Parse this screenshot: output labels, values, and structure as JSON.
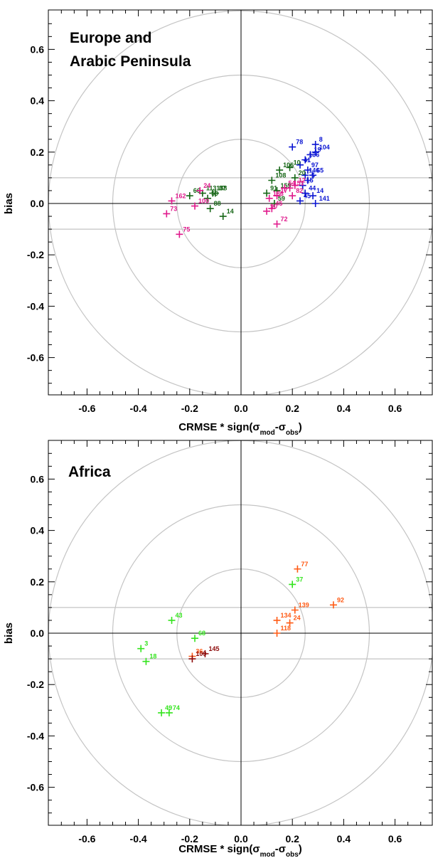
{
  "chart_data": [
    {
      "type": "scatter",
      "title_lines": [
        "Europe and",
        "Arabic Peninsula"
      ],
      "xlabel": "CRMSE * sign(σmod-σobs)",
      "ylabel": "bias",
      "xlim": [
        -0.75,
        0.75
      ],
      "ylim": [
        -0.75,
        0.75
      ],
      "xticks": [
        "-0.6",
        "-0.4",
        "-0.2",
        "0.0",
        "0.2",
        "0.4",
        "0.6"
      ],
      "yticks": [
        "-0.6",
        "-0.4",
        "-0.2",
        "0.0",
        "0.2",
        "0.4",
        "0.6"
      ],
      "circles": [
        0.25,
        0.5,
        0.75
      ],
      "hlines": [
        0.1,
        -0.1
      ],
      "series": [
        {
          "color": "#0a14d2",
          "points": [
            {
              "label": "78",
              "x": 0.2,
              "y": 0.22
            },
            {
              "label": "8",
              "x": 0.29,
              "y": 0.23
            },
            {
              "label": "104",
              "x": 0.29,
              "y": 0.2
            },
            {
              "label": "19",
              "x": 0.27,
              "y": 0.19
            },
            {
              "label": "136",
              "x": 0.25,
              "y": 0.17
            },
            {
              "label": "41",
              "x": 0.23,
              "y": 0.15
            },
            {
              "label": "97",
              "x": 0.26,
              "y": 0.13
            },
            {
              "label": "146",
              "x": 0.25,
              "y": 0.11
            },
            {
              "label": "65",
              "x": 0.28,
              "y": 0.11
            },
            {
              "label": "5",
              "x": 0.26,
              "y": 0.09
            },
            {
              "label": "15",
              "x": 0.24,
              "y": 0.07
            },
            {
              "label": "44",
              "x": 0.25,
              "y": 0.04
            },
            {
              "label": "14",
              "x": 0.28,
              "y": 0.03
            },
            {
              "label": "141",
              "x": 0.29,
              "y": 0.0
            },
            {
              "label": "45",
              "x": 0.23,
              "y": 0.01
            }
          ]
        },
        {
          "color": "#166616",
          "points": [
            {
              "label": "66",
              "x": -0.2,
              "y": 0.03
            },
            {
              "label": "113",
              "x": -0.15,
              "y": 0.04
            },
            {
              "label": "138",
              "x": -0.11,
              "y": 0.04
            },
            {
              "label": "87",
              "x": -0.1,
              "y": 0.04
            },
            {
              "label": "59",
              "x": -0.13,
              "y": 0.02
            },
            {
              "label": "88",
              "x": -0.12,
              "y": -0.02
            },
            {
              "label": "14",
              "x": -0.07,
              "y": -0.05
            },
            {
              "label": "106",
              "x": 0.15,
              "y": 0.13
            },
            {
              "label": "10",
              "x": 0.19,
              "y": 0.14
            },
            {
              "label": "108",
              "x": 0.12,
              "y": 0.09
            },
            {
              "label": "20",
              "x": 0.21,
              "y": 0.1
            },
            {
              "label": "159",
              "x": 0.14,
              "y": 0.05
            },
            {
              "label": "91",
              "x": 0.1,
              "y": 0.04
            },
            {
              "label": "59",
              "x": 0.13,
              "y": 0.0
            }
          ]
        },
        {
          "color": "#e0198c",
          "points": [
            {
              "label": "162",
              "x": -0.27,
              "y": 0.01
            },
            {
              "label": "73",
              "x": -0.29,
              "y": -0.04
            },
            {
              "label": "24",
              "x": -0.16,
              "y": 0.05
            },
            {
              "label": "100",
              "x": -0.18,
              "y": -0.01
            },
            {
              "label": "75",
              "x": -0.24,
              "y": -0.12
            },
            {
              "label": "72",
              "x": 0.14,
              "y": -0.08
            },
            {
              "label": "186",
              "x": 0.11,
              "y": 0.02
            },
            {
              "label": "17",
              "x": 0.14,
              "y": 0.03
            },
            {
              "label": "45",
              "x": 0.12,
              "y": -0.02
            },
            {
              "label": "90",
              "x": 0.1,
              "y": -0.03
            },
            {
              "label": "12",
              "x": 0.21,
              "y": 0.07
            },
            {
              "label": "54",
              "x": 0.17,
              "y": 0.06
            },
            {
              "label": "151",
              "x": 0.19,
              "y": 0.06
            },
            {
              "label": "82",
              "x": 0.2,
              "y": 0.03
            }
          ]
        }
      ]
    },
    {
      "type": "scatter",
      "title_lines": [
        "Africa"
      ],
      "xlabel": "CRMSE * sign(σmod-σobs)",
      "ylabel": "bias",
      "xlim": [
        -0.75,
        0.75
      ],
      "ylim": [
        -0.75,
        0.75
      ],
      "xticks": [
        "-0.6",
        "-0.4",
        "-0.2",
        "0.0",
        "0.2",
        "0.4",
        "0.6"
      ],
      "yticks": [
        "-0.6",
        "-0.4",
        "-0.2",
        "0.0",
        "0.2",
        "0.4",
        "0.6"
      ],
      "circles": [
        0.25,
        0.5,
        0.75
      ],
      "hlines": [
        0.1,
        -0.1
      ],
      "series": [
        {
          "color": "#33e41d",
          "points": [
            {
              "label": "43",
              "x": -0.27,
              "y": 0.05
            },
            {
              "label": "68",
              "x": -0.18,
              "y": -0.02
            },
            {
              "label": "3",
              "x": -0.39,
              "y": -0.06
            },
            {
              "label": "18",
              "x": -0.37,
              "y": -0.11
            },
            {
              "label": "49",
              "x": -0.31,
              "y": -0.31
            },
            {
              "label": "74",
              "x": -0.28,
              "y": -0.31
            },
            {
              "label": "37",
              "x": 0.2,
              "y": 0.19
            }
          ]
        },
        {
          "color": "#ff5a14",
          "points": [
            {
              "label": "77",
              "x": 0.22,
              "y": 0.25
            },
            {
              "label": "92",
              "x": 0.36,
              "y": 0.11
            },
            {
              "label": "139",
              "x": 0.21,
              "y": 0.09
            },
            {
              "label": "134",
              "x": 0.14,
              "y": 0.05
            },
            {
              "label": "24",
              "x": 0.19,
              "y": 0.04
            },
            {
              "label": "118",
              "x": 0.14,
              "y": 0.0
            },
            {
              "label": "36",
              "x": -0.19,
              "y": -0.09
            }
          ]
        },
        {
          "color": "#8c0a0a",
          "points": [
            {
              "label": "145",
              "x": -0.14,
              "y": -0.08
            },
            {
              "label": "109",
              "x": -0.19,
              "y": -0.1
            }
          ]
        }
      ]
    }
  ]
}
